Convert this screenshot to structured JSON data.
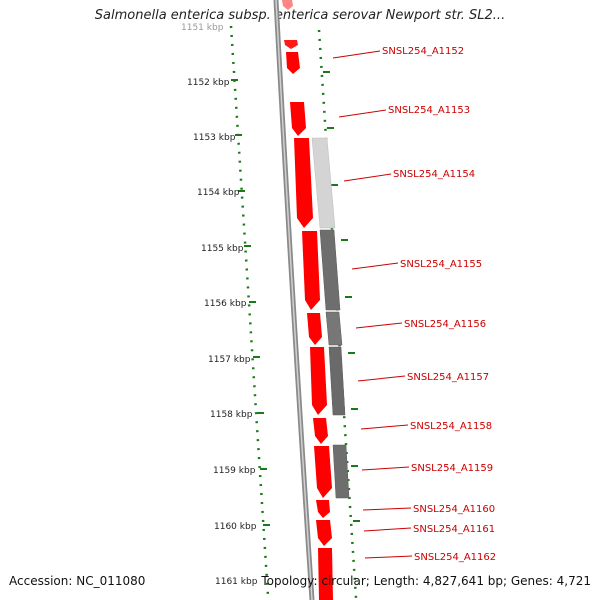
{
  "title": "Salmonella enterica subsp. enterica serovar Newport str. SL2...",
  "footer": {
    "accession": "Accession: NC_011080",
    "topology": "Topology: circular; Length: 4,827,641 bp; Genes: 4,721"
  },
  "scale": {
    "top_partial_label": "1151 kbp",
    "labels": [
      "1152 kbp",
      "1153 kbp",
      "1154 kbp",
      "1155 kbp",
      "1156 kbp",
      "1157 kbp",
      "1158 kbp",
      "1159 kbp",
      "1160 kbp",
      "1161 kbp"
    ]
  },
  "genes": [
    {
      "name": "SNSL254_A1152"
    },
    {
      "name": "SNSL254_A1153"
    },
    {
      "name": "SNSL254_A1154"
    },
    {
      "name": "SNSL254_A1155"
    },
    {
      "name": "SNSL254_A1156"
    },
    {
      "name": "SNSL254_A1157"
    },
    {
      "name": "SNSL254_A1158"
    },
    {
      "name": "SNSL254_A1159"
    },
    {
      "name": "SNSL254_A1160"
    },
    {
      "name": "SNSL254_A1161"
    },
    {
      "name": "SNSL254_A1162"
    }
  ],
  "colors": {
    "gene": "#ff0000",
    "gene_label": "#cc0000",
    "backbone": "#888888",
    "scale": "#1a7a1a",
    "tick_label": "#222222",
    "shade_light": "#cfcfcf",
    "shade_dark": "#6e6e6e"
  }
}
